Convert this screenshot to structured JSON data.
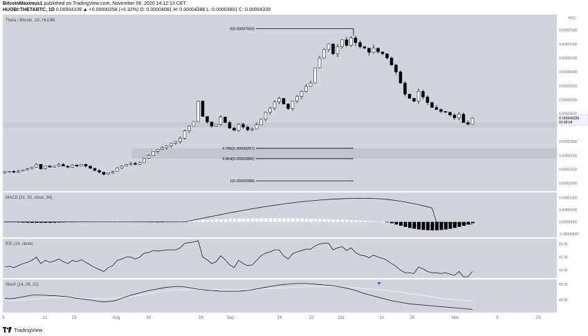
{
  "header": {
    "line1_author": "BitcoinMaximus1",
    "line1_rest": " published on TradingView.com, November 06, 2020 14:12:13 CET",
    "line2_symbol": "HUOBI:THETABTC, 1D",
    "line2_ohlc": " 0.00004339 ▲ +0.00000258 (+6.32%) O: 0.00004081 H: 0.00004388 L: 0.00003991 C: 0.00004339"
  },
  "panes": {
    "main": {
      "legend": "Theta / Bitcoin, 1D, HUOBI"
    },
    "macd": {
      "legend": "MACD (21, 50, close, 34)"
    },
    "rsi": {
      "legend": "RSI (14, close)"
    },
    "stoch": {
      "legend": "Stoch (14, 26, 21)"
    }
  },
  "footer": {
    "brand": "TradingView"
  },
  "colors": {
    "pane_bg": "#d1d4dc",
    "candle_up": "#ffffff",
    "candle_down": "#000000",
    "line": "#1c1c1c",
    "fib_zone": "#bcc0c9",
    "stoch_signal": "#f0f0f0",
    "marker": "#2962ff"
  },
  "chart_data": [
    {
      "type": "candlestick",
      "title": "Theta / Bitcoin, 1D, HUOBI",
      "currency_label": "BTC",
      "x_ticks": [
        "9",
        "12",
        "23",
        "Aug",
        "10",
        "24",
        "Sep",
        "14",
        "22",
        "Oct",
        "12",
        "20",
        "Nov",
        "9",
        "23"
      ],
      "y_ticks": [
        "0.00007500",
        "0.00007000",
        "0.00006500",
        "0.00006000",
        "0.00005500",
        "0.00005000",
        "0.00004500",
        "0.00003500",
        "0.00003000",
        "0.00002500",
        "0.00002000"
      ],
      "ylim": [
        1.72e-05,
        8.06e-05
      ],
      "last_price": "0.00004339",
      "countdown": "02:48:04",
      "annotations": [
        "0(0.00007550)",
        "0.786(0.00003257)",
        "0.854(0.00002886)",
        "1(0.00002088)"
      ],
      "fib_levels": [
        7.55e-05,
        3.257e-05,
        2.886e-05,
        2.088e-05
      ],
      "support_zone": [
        4.01e-05,
        4.19e-05
      ],
      "ohlc_close_path": [
        2.42e-05,
        2.43e-05,
        2.4e-05,
        2.44e-05,
        2.48e-05,
        2.52e-05,
        2.58e-05,
        2.68e-05,
        2.52e-05,
        2.62e-05,
        2.58e-05,
        2.62e-05,
        2.68e-05,
        2.62e-05,
        2.58e-05,
        2.66e-05,
        2.62e-05,
        2.68e-05,
        2.62e-05,
        2.54e-05,
        2.46e-05,
        2.4e-05,
        2.32e-05,
        2.38e-05,
        2.42e-05,
        2.55e-05,
        2.62e-05,
        2.68e-05,
        2.72e-05,
        2.68e-05,
        2.74e-05,
        2.9e-05,
        3e-05,
        3.15e-05,
        3.22e-05,
        3.28e-05,
        3.35e-05,
        3.44e-05,
        3.5e-05,
        3.62e-05,
        3.88e-05,
        4.05e-05,
        4.22e-05,
        4.95e-05,
        4.4e-05,
        4.2e-05,
        4.05e-05,
        4.12e-05,
        4.38e-05,
        4.18e-05,
        3.98e-05,
        3.9e-05,
        4.12e-05,
        4.02e-05,
        3.92e-05,
        3.95e-05,
        4.1e-05,
        4.3e-05,
        4.55e-05,
        4.7e-05,
        4.92e-05,
        5.05e-05,
        4.85e-05,
        4.68e-05,
        4.95e-05,
        5.12e-05,
        5.3e-05,
        5.48e-05,
        5.6e-05,
        6.15e-05,
        6.5e-05,
        6.8e-05,
        7e-05,
        6.65e-05,
        6.9e-05,
        7.15e-05,
        6.95e-05,
        7.22e-05,
        7.05e-05,
        6.9e-05,
        6.85e-05,
        6.7e-05,
        6.85e-05,
        6.72e-05,
        6.65e-05,
        6.5e-05,
        6.25e-05,
        6e-05,
        5.6e-05,
        5.2e-05,
        5.05e-05,
        4.95e-05,
        5.3e-05,
        5.1e-05,
        4.9e-05,
        4.72e-05,
        4.65e-05,
        4.58e-05,
        4.55e-05,
        4.45e-05,
        4.35e-05,
        4.48e-05,
        4.18e-05,
        4.12e-05,
        4.34e-05
      ],
      "volatility_factor": 0.45
    },
    {
      "type": "macd",
      "title": "MACD (21, 50, close, 34)",
      "y_ticks": [
        "0.00001000",
        "0.00000500",
        "0.00000000",
        "-0.00000500"
      ],
      "ylim": [
        -6.4e-06,
        1.22e-05
      ],
      "macd_series": [
        0.0,
        0.0,
        0.0,
        0.0,
        0.0,
        0.0,
        0.0,
        0.0,
        0.0,
        0.0,
        0.0,
        0.0,
        0.0,
        0.0,
        0.0,
        0.0,
        0.0,
        0.0,
        0.0,
        0.0,
        0.0,
        0.0,
        0.0,
        0.0,
        0.0,
        0.0,
        0.0,
        0.0,
        0.0,
        0.0,
        0.0,
        0.0,
        0.0,
        0.0,
        0.0,
        0.0,
        0.0,
        0.0,
        0.0,
        0.0,
        0.0,
        0.0,
        0.0,
        0.0,
        0.0,
        0.0,
        0.0,
        0.0,
        0.0,
        0.0,
        0.0,
        0.0,
        0.0,
        0.0,
        0.0,
        0.0,
        0.0,
        0.0,
        0.0,
        0.0,
        0.0,
        0.0,
        0.0,
        0.0,
        0.0,
        0.0,
        0.0,
        0.0,
        0.0,
        0.0,
        0.0,
        0.0,
        0.0,
        0.0,
        0.0,
        0.0,
        0.0,
        0.0,
        0.0,
        0.0,
        0.0,
        0.0,
        0.0,
        0.0,
        0.0,
        0.0,
        0.0,
        0.0,
        0.0,
        0.0,
        0.0,
        0.0,
        0.0,
        0.0,
        0.0,
        0.0,
        0.0,
        0.0,
        0.0,
        0.0,
        0.0,
        0.0,
        0.0,
        0.0,
        0.0
      ]
    },
    {
      "type": "line",
      "title": "RSI (14, close)",
      "y_ticks": [
        "80.00",
        "60.00",
        "40.00"
      ],
      "ylim": [
        28,
        88
      ],
      "series": [
        {
          "values": [
            45,
            46,
            44,
            47,
            50,
            52,
            55,
            60,
            50,
            55,
            52,
            54,
            57,
            53,
            50,
            55,
            53,
            56,
            52,
            48,
            44,
            41,
            38,
            44,
            47,
            55,
            57,
            60,
            60,
            57,
            60,
            66,
            67,
            70,
            69,
            70,
            71,
            71,
            71,
            74,
            81,
            82,
            83,
            85,
            60,
            56,
            50,
            53,
            62,
            56,
            48,
            44,
            55,
            50,
            47,
            48,
            55,
            62,
            66,
            68,
            71,
            71,
            62,
            57,
            65,
            68,
            70,
            72,
            72,
            77,
            80,
            81,
            81,
            71,
            74,
            76,
            70,
            74,
            67,
            63,
            62,
            59,
            63,
            60,
            58,
            55,
            50,
            46,
            40,
            36,
            36,
            35,
            45,
            42,
            38,
            36,
            36,
            35,
            36,
            34,
            32,
            38,
            30,
            30,
            38
          ]
        }
      ]
    },
    {
      "type": "line",
      "title": "Stoch (14, 26, 21)",
      "y_ticks": [
        "80.00",
        "40.00"
      ],
      "ylim": [
        8,
        92
      ],
      "series": [
        {
          "values": [
            44,
            43,
            44,
            46,
            48,
            50,
            52,
            53,
            52,
            52,
            51,
            51,
            50,
            49,
            48,
            46,
            44,
            43,
            41,
            40,
            38,
            36,
            35,
            36,
            37,
            40,
            44,
            48,
            52,
            55,
            58,
            61,
            64,
            66,
            68,
            70,
            72,
            73,
            74,
            74,
            73,
            71,
            69,
            67,
            66,
            65,
            64,
            63,
            62,
            62,
            62,
            62,
            62,
            63,
            64,
            66,
            68,
            70,
            72,
            74,
            76,
            78,
            79,
            80,
            81,
            82,
            82,
            82,
            81,
            80,
            79,
            78,
            77,
            76,
            74,
            72,
            70,
            67,
            64,
            60,
            56,
            53,
            50,
            47,
            44,
            41,
            38,
            36,
            34,
            32,
            30,
            29,
            28,
            27,
            26,
            25,
            24,
            23,
            22,
            21,
            20,
            19,
            18,
            17,
            16
          ]
        },
        {
          "values": [
            38,
            38,
            38,
            39,
            40,
            41,
            42,
            43,
            44,
            45,
            46,
            46,
            46,
            46,
            46,
            46,
            46,
            45,
            45,
            44,
            44,
            44,
            43,
            43,
            44,
            45,
            46,
            47,
            48,
            50,
            52,
            54,
            56,
            58,
            60,
            62,
            63,
            64,
            65,
            66,
            66,
            66,
            66,
            66,
            66,
            66,
            66,
            66,
            66,
            66,
            66,
            66,
            66,
            66,
            67,
            67,
            68,
            68,
            69,
            69,
            70,
            70,
            71,
            71,
            72,
            72,
            73,
            73,
            74,
            74,
            74,
            74,
            74,
            74,
            74,
            73,
            73,
            72,
            71,
            70,
            69,
            68,
            67,
            66,
            65,
            64,
            62,
            61,
            60,
            58,
            56,
            55,
            53,
            51,
            50,
            48,
            46,
            44,
            43,
            42,
            41,
            40,
            39,
            38,
            37
          ]
        }
      ],
      "marker": "down-triangle"
    }
  ]
}
